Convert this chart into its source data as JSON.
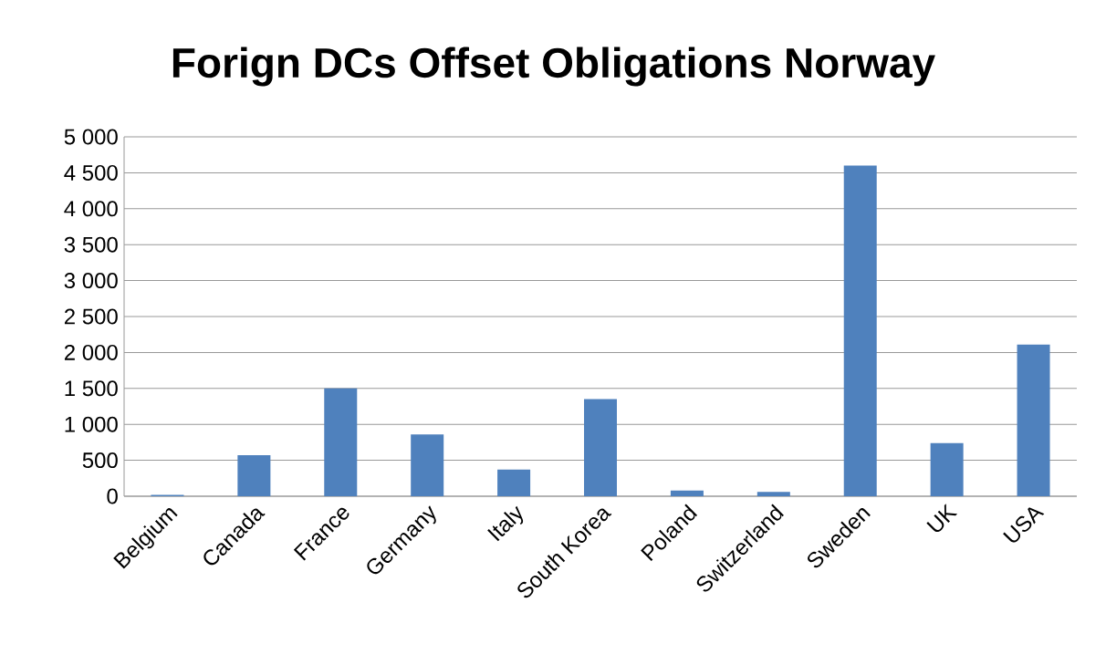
{
  "chart_data": {
    "type": "bar",
    "title": "Forign DCs Offset Obligations Norway",
    "categories": [
      "Belgium",
      "Canada",
      "France",
      "Germany",
      "Italy",
      "South Korea",
      "Poland",
      "Switzerland",
      "Sweden",
      "UK",
      "USA"
    ],
    "values": [
      20,
      570,
      1500,
      860,
      370,
      1350,
      80,
      60,
      4600,
      740,
      2110
    ],
    "color": "#4f81bd",
    "ylim": [
      0,
      5000
    ],
    "yticks": [
      {
        "value": 0,
        "label": "0"
      },
      {
        "value": 500,
        "label": "500"
      },
      {
        "value": 1000,
        "label": "1 000"
      },
      {
        "value": 1500,
        "label": "1 500"
      },
      {
        "value": 2000,
        "label": "2 000"
      },
      {
        "value": 2500,
        "label": "2 500"
      },
      {
        "value": 3000,
        "label": "3 000"
      },
      {
        "value": 3500,
        "label": "3 500"
      },
      {
        "value": 4000,
        "label": "4 000"
      },
      {
        "value": 4500,
        "label": "4 500"
      },
      {
        "value": 5000,
        "label": "5 000"
      }
    ],
    "grid": "y"
  }
}
